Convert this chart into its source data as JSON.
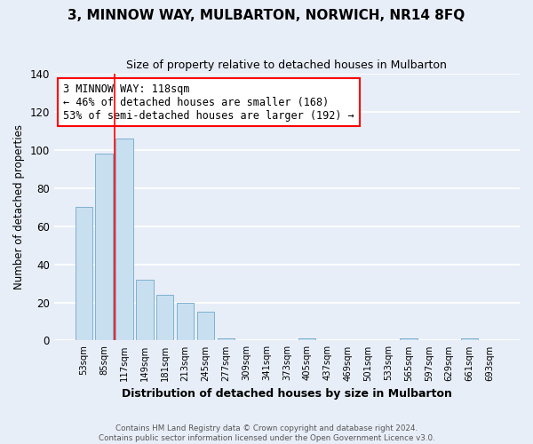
{
  "title": "3, MINNOW WAY, MULBARTON, NORWICH, NR14 8FQ",
  "subtitle": "Size of property relative to detached houses in Mulbarton",
  "xlabel": "Distribution of detached houses by size in Mulbarton",
  "ylabel": "Number of detached properties",
  "bar_labels": [
    "53sqm",
    "85sqm",
    "117sqm",
    "149sqm",
    "181sqm",
    "213sqm",
    "245sqm",
    "277sqm",
    "309sqm",
    "341sqm",
    "373sqm",
    "405sqm",
    "437sqm",
    "469sqm",
    "501sqm",
    "533sqm",
    "565sqm",
    "597sqm",
    "629sqm",
    "661sqm",
    "693sqm"
  ],
  "bar_values": [
    70,
    98,
    106,
    32,
    24,
    20,
    15,
    1,
    0,
    0,
    0,
    1,
    0,
    0,
    0,
    0,
    1,
    0,
    0,
    1,
    0
  ],
  "bar_color": "#c8dff0",
  "bar_edge_color": "#7fb0d0",
  "red_line_bar_index": 2,
  "annotation_title": "3 MINNOW WAY: 118sqm",
  "annotation_line1": "← 46% of detached houses are smaller (168)",
  "annotation_line2": "53% of semi-detached houses are larger (192) →",
  "footer1": "Contains HM Land Registry data © Crown copyright and database right 2024.",
  "footer2": "Contains public sector information licensed under the Open Government Licence v3.0.",
  "ylim": [
    0,
    140
  ],
  "yticks": [
    0,
    20,
    40,
    60,
    80,
    100,
    120,
    140
  ],
  "background_color": "#e8eef8",
  "plot_background": "#e8eef8",
  "grid_color": "#ffffff"
}
